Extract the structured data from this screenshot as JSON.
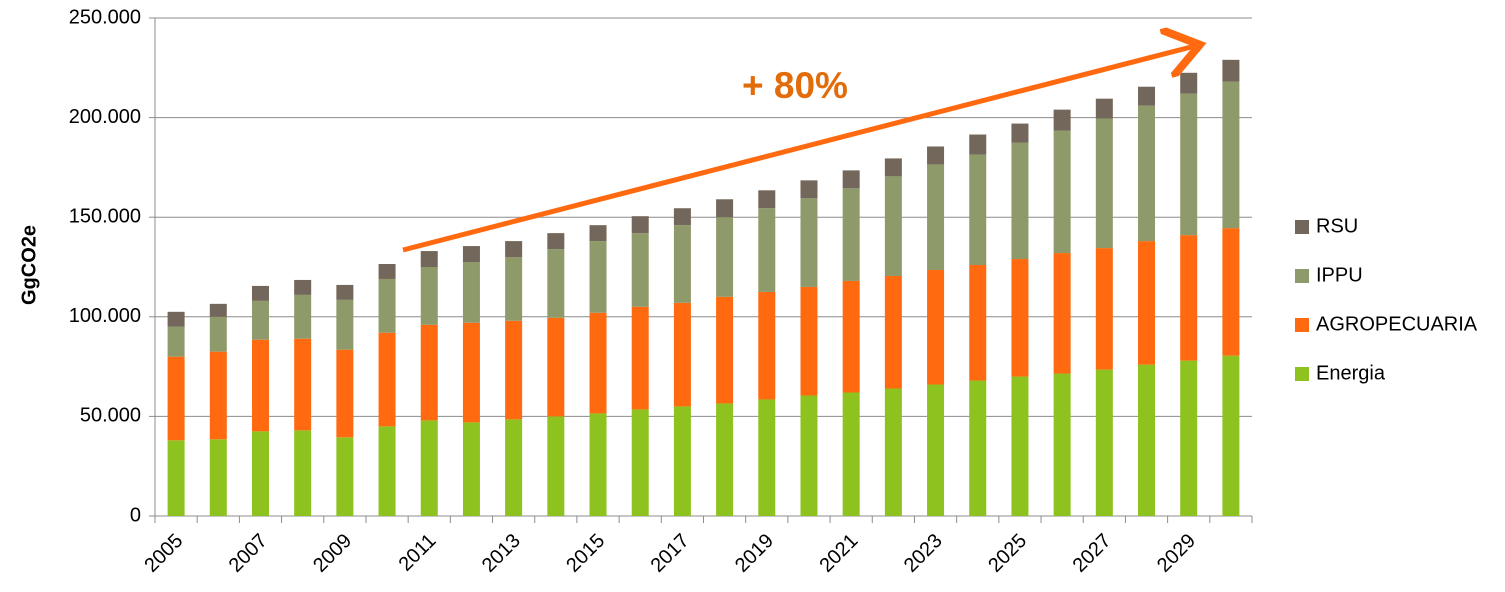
{
  "chart_data": {
    "type": "stacked-bar",
    "y_label": "GgCO2e",
    "annotation": "+ 80%",
    "categories": [
      "2005",
      null,
      "2007",
      null,
      "2009",
      null,
      "2011",
      null,
      "2013",
      null,
      "2015",
      null,
      "2017",
      null,
      "2019",
      null,
      "2021",
      null,
      "2023",
      null,
      "2025",
      null,
      "2027",
      null,
      "2029",
      null
    ],
    "series": [
      {
        "name": "Energia",
        "color": "#8dc21f",
        "values": [
          38000,
          38500,
          42500,
          43000,
          39500,
          45000,
          48000,
          47000,
          48500,
          50000,
          51500,
          53500,
          55000,
          56500,
          58500,
          60500,
          62000,
          64000,
          66000,
          68000,
          70000,
          71500,
          73500,
          76000,
          78000,
          80500
        ]
      },
      {
        "name": "AGROPECUARIA",
        "color": "#ff6a10",
        "values": [
          42000,
          44000,
          46000,
          46000,
          44000,
          47000,
          48000,
          50000,
          49500,
          49500,
          50500,
          51500,
          52000,
          53500,
          54000,
          54500,
          56000,
          56500,
          57500,
          58000,
          59000,
          60500,
          61000,
          62000,
          63000,
          64000
        ]
      },
      {
        "name": "IPPU",
        "color": "#8f9a6a",
        "values": [
          15000,
          17500,
          19500,
          22000,
          25000,
          27000,
          29000,
          30500,
          32000,
          34500,
          36000,
          37000,
          39000,
          40000,
          42000,
          44500,
          46500,
          50000,
          53000,
          55500,
          58500,
          61500,
          65000,
          68000,
          71000,
          73500
        ]
      },
      {
        "name": "RSU",
        "color": "#73665a",
        "values": [
          7500,
          6500,
          7500,
          7500,
          7500,
          7500,
          8000,
          8000,
          8000,
          8000,
          8000,
          8500,
          8500,
          9000,
          9000,
          9000,
          9000,
          9000,
          9000,
          10000,
          9500,
          10500,
          10000,
          9500,
          10500,
          11000
        ]
      }
    ],
    "ylim": [
      0,
      250000
    ],
    "yticks": [
      0,
      {
        "value": 50000,
        "label": "50.000"
      },
      {
        "value": 100000,
        "label": "100.000"
      },
      {
        "value": 150000,
        "label": "150.000"
      },
      {
        "value": 200000,
        "label": "200.000"
      },
      {
        "value": 250000,
        "label": "250.000"
      }
    ],
    "grid": true,
    "legend": "right"
  }
}
